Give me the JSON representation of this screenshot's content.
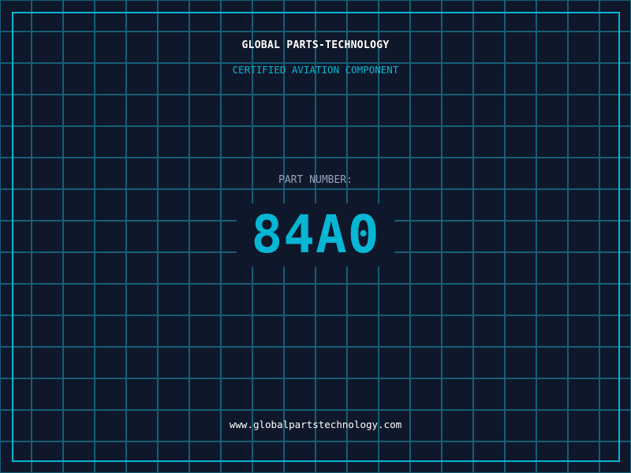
{
  "brand": "GLOBAL PARTS-TECHNOLOGY",
  "subtitle": "CERTIFIED AVIATION COMPONENT",
  "part_label": "PART NUMBER:",
  "part_number": "84A0",
  "url": "www.globalpartstechnology.com",
  "colors": {
    "accent": "#06b6d4",
    "background": "#0f172a",
    "grid": "#155e75"
  }
}
